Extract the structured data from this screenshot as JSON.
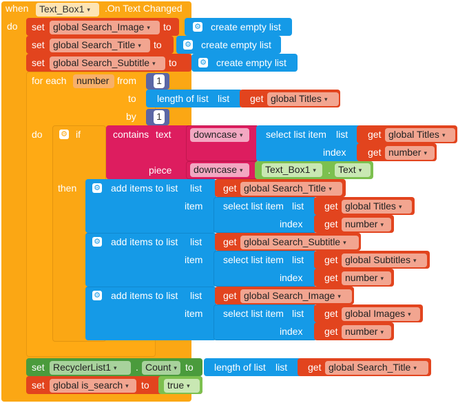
{
  "event": {
    "when": "when",
    "component": "Text_Box1",
    "event_name": ".On Text Changed",
    "do": "do"
  },
  "init": [
    {
      "set": "set",
      "var": "global Search_Image",
      "to": "to",
      "value": "create empty list"
    },
    {
      "set": "set",
      "var": "global Search_Title",
      "to": "to",
      "value": "create empty list"
    },
    {
      "set": "set",
      "var": "global Search_Subtitle",
      "to": "to",
      "value": "create empty list"
    }
  ],
  "loop": {
    "header": "for each",
    "var": "number",
    "from": "from",
    "from_val": "1",
    "to": "to",
    "length_label": "length of list",
    "list_label": "list",
    "get": "get",
    "titles": "global Titles",
    "by": "by",
    "by_val": "1",
    "do": "do"
  },
  "ifblock": {
    "if": "if",
    "contains": "contains",
    "text": "text",
    "downcase": "downcase",
    "select": "select list item",
    "list": "list",
    "index": "index",
    "get": "get",
    "titles": "global Titles",
    "number": "number",
    "piece": "piece",
    "textbox": "Text_Box1",
    "dot": ".",
    "text_prop": "Text",
    "then": "then"
  },
  "adds": [
    {
      "label": "add items to list",
      "list": "list",
      "get": "get",
      "target": "global Search_Title",
      "item": "item",
      "select": "select list item",
      "slist": "list",
      "source": "global Titles",
      "index": "index",
      "number": "number"
    },
    {
      "label": "add items to list",
      "list": "list",
      "get": "get",
      "target": "global Search_Subtitle",
      "item": "item",
      "select": "select list item",
      "slist": "list",
      "source": "global Subtitles",
      "index": "index",
      "number": "number"
    },
    {
      "label": "add items to list",
      "list": "list",
      "get": "get",
      "target": "global Search_Image",
      "item": "item",
      "select": "select list item",
      "slist": "list",
      "source": "global Images",
      "index": "index",
      "number": "number"
    }
  ],
  "final_set": {
    "set": "set",
    "component": "RecyclerList1",
    "dot": ".",
    "prop": "Count",
    "to": "to",
    "length_label": "length of list",
    "list": "list",
    "get": "get",
    "value": "global Search_Title"
  },
  "search_set": {
    "set": "set",
    "var": "global is_search",
    "to": "to",
    "value": "true"
  },
  "colors": {
    "event": "#fba714",
    "variables": "#e2441e",
    "lists": "#159ae7",
    "components": "#4a9b3c",
    "math": "#5b67a5",
    "text": "#dd1d5f",
    "logic": "#7cc04f"
  }
}
